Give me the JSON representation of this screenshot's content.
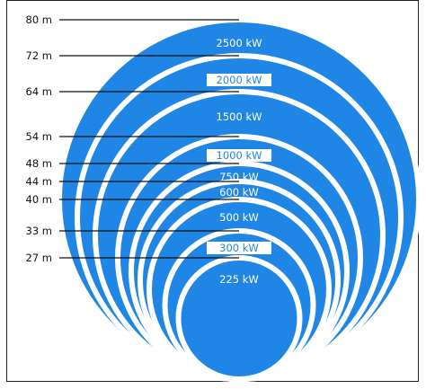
{
  "colors": {
    "disk_blue": "#1f86e6",
    "ring_white": "#ffffff",
    "line": "#111111",
    "border": "#222222"
  },
  "rotors": [
    {
      "diameter_label": "80 m",
      "power_label": "2500 kW",
      "diameter_m": 80,
      "power_kw": 2500
    },
    {
      "diameter_label": "72 m",
      "power_label": "2000 kW",
      "diameter_m": 72,
      "power_kw": 2000
    },
    {
      "diameter_label": "64 m",
      "power_label": "1500 kW",
      "diameter_m": 64,
      "power_kw": 1500
    },
    {
      "diameter_label": "54 m",
      "power_label": "1000 kW",
      "diameter_m": 54,
      "power_kw": 1000
    },
    {
      "diameter_label": "48 m",
      "power_label": "750 kW",
      "diameter_m": 48,
      "power_kw": 750
    },
    {
      "diameter_label": "44 m",
      "power_label": "600 kW",
      "diameter_m": 44,
      "power_kw": 600
    },
    {
      "diameter_label": "40 m",
      "power_label": "500 kW",
      "diameter_m": 40,
      "power_kw": 500
    },
    {
      "diameter_label": "33 m",
      "power_label": "300 kW",
      "diameter_m": 33,
      "power_kw": 300
    },
    {
      "diameter_label": "27 m",
      "power_label": "225 kW",
      "diameter_m": 27,
      "power_kw": 225
    }
  ]
}
